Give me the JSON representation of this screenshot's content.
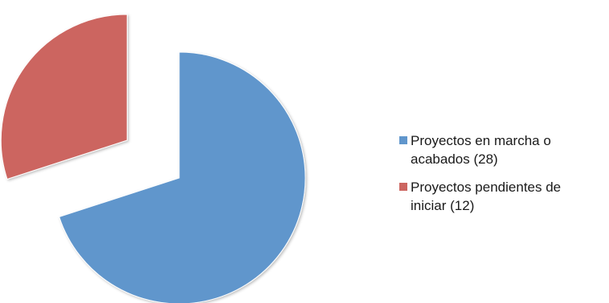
{
  "chart_data": {
    "type": "pie",
    "title": "",
    "categories": [
      "Proyectos en marcha o acabados",
      "Proyectos pendientes de iniciar"
    ],
    "values": [
      28,
      12
    ],
    "colors": [
      "#6096cc",
      "#cc6560"
    ],
    "exploded": [
      false,
      true
    ],
    "legend_position": "right",
    "legend": [
      {
        "label": "Proyectos en marcha o\nacabados (28)",
        "color": "#6096cc"
      },
      {
        "label": "Proyectos pendientes de\niniciar (12)",
        "color": "#cc6560"
      }
    ]
  }
}
